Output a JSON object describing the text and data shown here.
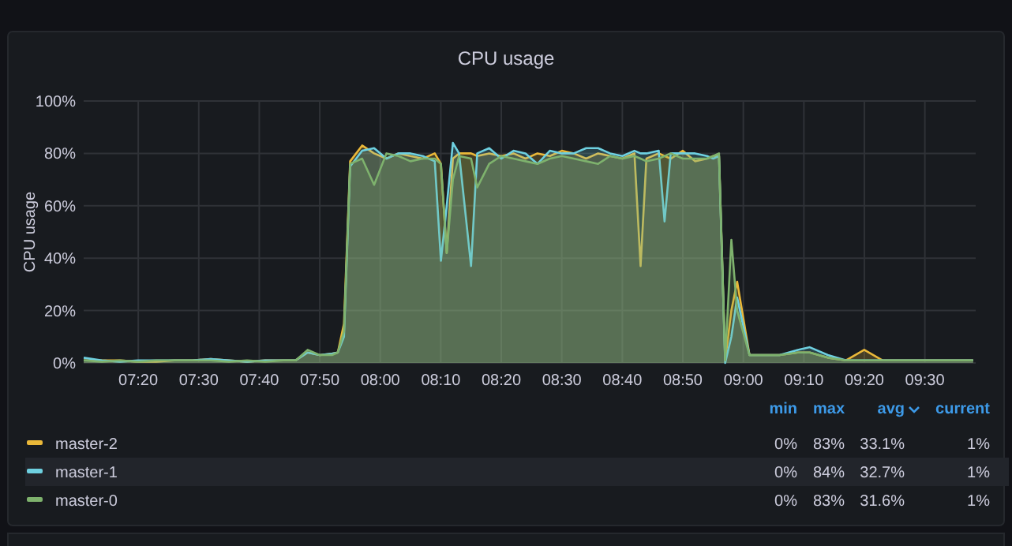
{
  "chart_data": {
    "type": "area",
    "title": "CPU usage",
    "ylabel": "CPU usage",
    "x": [
      7.183,
      7.233,
      7.283,
      7.333,
      7.383,
      7.433,
      7.483,
      7.533,
      7.583,
      7.633,
      7.683,
      7.733,
      7.767,
      7.8,
      7.833,
      7.867,
      7.883,
      7.9,
      7.917,
      7.95,
      7.983,
      8.017,
      8.05,
      8.083,
      8.117,
      8.15,
      8.167,
      8.183,
      8.2,
      8.217,
      8.25,
      8.267,
      8.3,
      8.333,
      8.367,
      8.4,
      8.433,
      8.467,
      8.5,
      8.533,
      8.567,
      8.6,
      8.633,
      8.667,
      8.7,
      8.717,
      8.733,
      8.767,
      8.783,
      8.8,
      8.833,
      8.867,
      8.9,
      8.917,
      8.933,
      8.95,
      8.967,
      8.983,
      9.017,
      9.05,
      9.1,
      9.15,
      9.183,
      9.233,
      9.283,
      9.333,
      9.383,
      9.433,
      9.483,
      9.533,
      9.583,
      9.633
    ],
    "series": [
      {
        "name": "master-2",
        "color": "#eab839",
        "values": [
          1,
          1,
          1,
          0.5,
          0.5,
          1,
          1,
          1.5,
          1,
          0.5,
          1,
          1,
          1,
          4,
          3,
          3.5,
          4,
          15,
          77,
          83,
          80,
          78,
          80,
          79,
          78,
          80,
          76,
          42,
          78,
          80,
          80,
          79,
          80,
          79,
          80,
          78,
          80,
          79,
          81,
          80,
          78,
          80,
          79,
          78,
          80,
          37,
          78,
          80,
          79,
          78,
          81,
          77,
          78,
          79,
          79,
          1,
          20,
          31,
          3,
          3,
          3,
          4,
          4,
          2,
          1,
          5,
          1,
          1,
          1,
          1,
          1,
          1
        ]
      },
      {
        "name": "master-1",
        "color": "#6ed0e0",
        "values": [
          2,
          1,
          0.5,
          1,
          1,
          1,
          1,
          1.5,
          1,
          0.5,
          1,
          1,
          1,
          4,
          3,
          3.5,
          4,
          10,
          75,
          81,
          82,
          78,
          80,
          80,
          79,
          77,
          39,
          60,
          84,
          80,
          37,
          80,
          82,
          78,
          81,
          80,
          76,
          81,
          80,
          80,
          82,
          82,
          80,
          79,
          81,
          80,
          80,
          81,
          54,
          80,
          80,
          80,
          79,
          78,
          79,
          0,
          10,
          25,
          3,
          3,
          3,
          5,
          6,
          3,
          1,
          1,
          1,
          1,
          1,
          1,
          1,
          1
        ]
      },
      {
        "name": "master-0",
        "color": "#7eb26d",
        "values": [
          1,
          0.5,
          1,
          0.5,
          1,
          1,
          1,
          1,
          0.5,
          1,
          0.5,
          1,
          1,
          5,
          3,
          3,
          4,
          12,
          76,
          78,
          68,
          80,
          79,
          77,
          78,
          78,
          76,
          42,
          70,
          79,
          78,
          67,
          76,
          79,
          78,
          77,
          76,
          78,
          79,
          78,
          77,
          76,
          79,
          78,
          79,
          78,
          77,
          78,
          79,
          80,
          78,
          78,
          78,
          79,
          80,
          1,
          47,
          20,
          3,
          3,
          3,
          4,
          4,
          2,
          1,
          1,
          1,
          1,
          1,
          1,
          1,
          1
        ]
      }
    ],
    "xlim": [
      7.183,
      9.64
    ],
    "xticks": [
      {
        "value": 7.3333,
        "label": "07:20"
      },
      {
        "value": 7.5,
        "label": "07:30"
      },
      {
        "value": 7.6667,
        "label": "07:40"
      },
      {
        "value": 7.8333,
        "label": "07:50"
      },
      {
        "value": 8,
        "label": "08:00"
      },
      {
        "value": 8.1667,
        "label": "08:10"
      },
      {
        "value": 8.3333,
        "label": "08:20"
      },
      {
        "value": 8.5,
        "label": "08:30"
      },
      {
        "value": 8.6667,
        "label": "08:40"
      },
      {
        "value": 8.8333,
        "label": "08:50"
      },
      {
        "value": 9,
        "label": "09:00"
      },
      {
        "value": 9.1667,
        "label": "09:10"
      },
      {
        "value": 9.3333,
        "label": "09:20"
      },
      {
        "value": 9.5,
        "label": "09:30"
      }
    ],
    "ylim": [
      0,
      100
    ],
    "yticks": [
      {
        "value": 0,
        "label": "0%"
      },
      {
        "value": 20,
        "label": "20%"
      },
      {
        "value": 40,
        "label": "40%"
      },
      {
        "value": 60,
        "label": "60%"
      },
      {
        "value": 80,
        "label": "80%"
      },
      {
        "value": 100,
        "label": "100%"
      }
    ],
    "grid": true,
    "legend": "bottom",
    "marker": "none",
    "line_style": "solid",
    "annotations": [
      "min",
      "max",
      "avg",
      "current",
      "0%",
      "83%",
      "33.1%",
      "1%",
      "0%",
      "84%",
      "32.7%",
      "1%",
      "0%",
      "83%",
      "31.6%",
      "1%"
    ]
  }
}
